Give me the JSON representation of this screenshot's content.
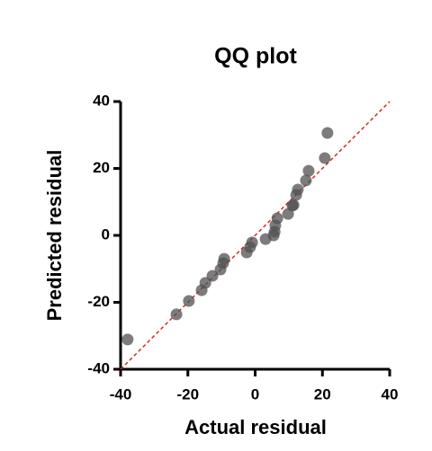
{
  "chart_data": {
    "type": "scatter",
    "title": "QQ plot",
    "x_label": "Actual residual",
    "y_label": "Predicted residual",
    "x": [
      -37.9,
      -23.4,
      -19.7,
      -15.9,
      -14.8,
      -12.7,
      -10.3,
      -9.5,
      -9.2,
      -2.5,
      -1.5,
      -0.9,
      3.1,
      5.5,
      5.8,
      6.0,
      6.6,
      9.8,
      11.1,
      11.4,
      12.2,
      12.7,
      15.1,
      15.9,
      20.7,
      21.5
    ],
    "values": [
      -31.1,
      -23.6,
      -19.6,
      -16.4,
      -14.2,
      -12.1,
      -10.2,
      -8.3,
      -7.0,
      -5.1,
      -3.5,
      -2.1,
      -1.1,
      0,
      1.1,
      3.0,
      5.1,
      6.4,
      8.9,
      9.1,
      12.1,
      13.7,
      16.4,
      19.3,
      23.1,
      30.6
    ],
    "color": "#505050",
    "xlim": [
      -40,
      40
    ],
    "xticks": [
      -40,
      -20,
      0,
      20,
      40
    ],
    "ylim": [
      -40,
      40
    ],
    "yticks": [
      -40,
      -20,
      0,
      20,
      40
    ],
    "identity_line": true,
    "identity_line_color": "#d62728",
    "grid": false
  }
}
